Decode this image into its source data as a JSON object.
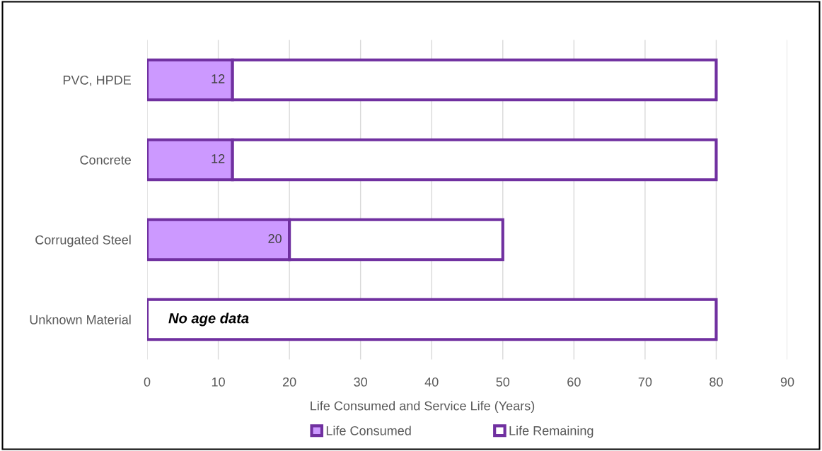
{
  "chart_data": {
    "type": "bar",
    "orientation": "horizontal",
    "stacked": true,
    "xlabel": "Life Consumed and Service Life (Years)",
    "categories": [
      "PVC, HPDE",
      "Concrete",
      "Corrugated Steel",
      "Unknown Material"
    ],
    "series": [
      {
        "name": "Life Consumed",
        "color": "#cc99ff",
        "values": [
          12,
          12,
          20,
          null
        ],
        "value_labels": [
          "12",
          "12",
          "20",
          null
        ]
      },
      {
        "name": "Life Remaining",
        "color": "#ffffff",
        "values": [
          68,
          68,
          30,
          80
        ]
      }
    ],
    "xlim": [
      0,
      90
    ],
    "xticks": [
      0,
      10,
      20,
      30,
      40,
      50,
      60,
      70,
      80,
      90
    ],
    "grid": "x",
    "legend": "bottom",
    "annotations": [
      "No age data"
    ]
  }
}
